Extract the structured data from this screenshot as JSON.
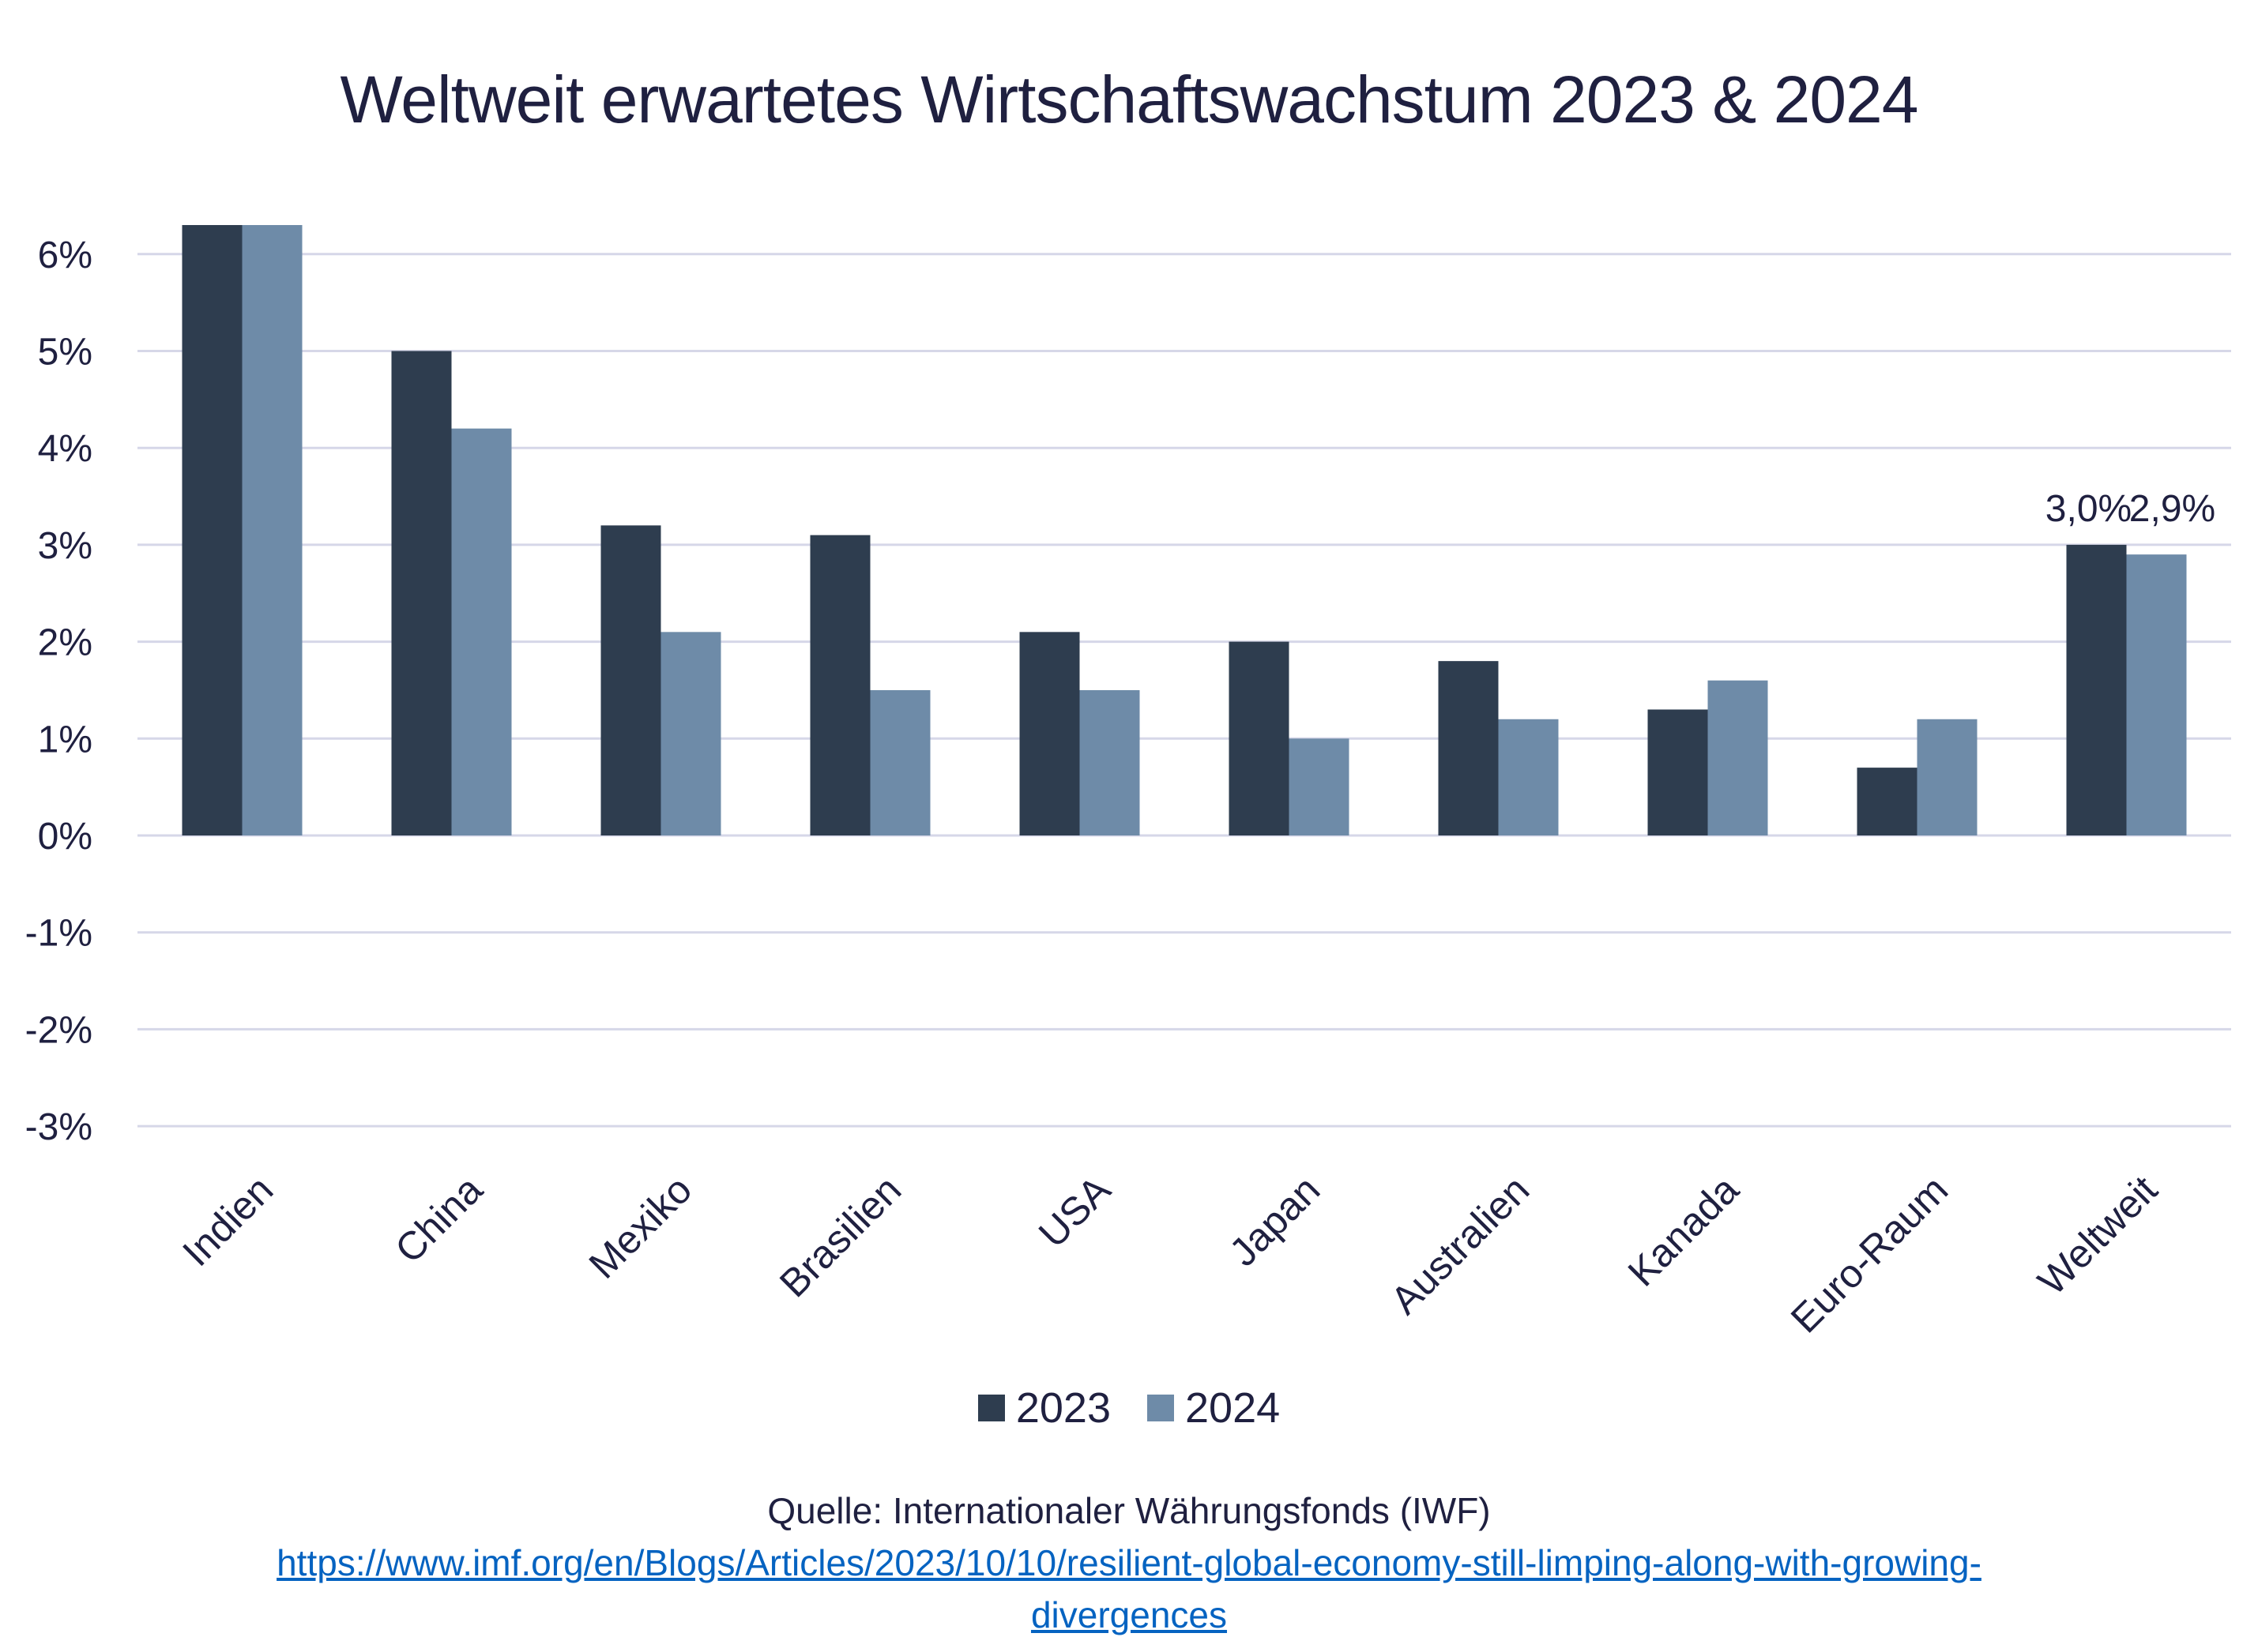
{
  "title": "Weltweit erwartetes Wirtschaftswachstum 2023 & 2024",
  "legend": [
    {
      "label": "2023",
      "color": "#2e3d4f"
    },
    {
      "label": "2024",
      "color": "#6e8ba8"
    }
  ],
  "source": {
    "label": "Quelle: Internationaler Währungsfonds (IWF)",
    "link_line1": "https://www.imf.org/en/Blogs/Articles/2023/10/10/resilient-global-economy-still-limping-along-with-growing-",
    "link_line2": "divergences"
  },
  "colors": {
    "grid": "#d6d7e8",
    "text": "#1f2040",
    "link": "#0563c1"
  },
  "chart_data": {
    "type": "bar",
    "title": "Weltweit erwartetes Wirtschaftswachstum 2023 & 2024",
    "xlabel": "",
    "ylabel": "",
    "categories": [
      "Indien",
      "China",
      "Mexiko",
      "Brasilien",
      "USA",
      "Japan",
      "Australien",
      "Kanada",
      "Euro-Raum",
      "Weltweit"
    ],
    "series": [
      {
        "name": "2023",
        "color": "#2e3d4f",
        "values": [
          6.3,
          5.0,
          3.2,
          3.1,
          2.1,
          2.0,
          1.8,
          1.3,
          0.7,
          3.0
        ]
      },
      {
        "name": "2024",
        "color": "#6e8ba8",
        "values": [
          6.3,
          4.2,
          2.1,
          1.5,
          1.5,
          1.0,
          1.2,
          1.6,
          1.2,
          2.9
        ]
      }
    ],
    "ylim": [
      -3,
      6
    ],
    "yticks": [
      6,
      5,
      4,
      3,
      2,
      1,
      0,
      -1,
      -2,
      -3
    ],
    "ytick_labels": [
      "6%",
      "5%",
      "4%",
      "3%",
      "2%",
      "1%",
      "0%",
      "-1%",
      "-2%",
      "-3%"
    ],
    "annotations": [
      {
        "category": "Weltweit",
        "series": "2023",
        "text": "3,0%"
      },
      {
        "category": "Weltweit",
        "series": "2024",
        "text": "2,9%"
      }
    ],
    "grid": true,
    "legend_position": "bottom"
  }
}
